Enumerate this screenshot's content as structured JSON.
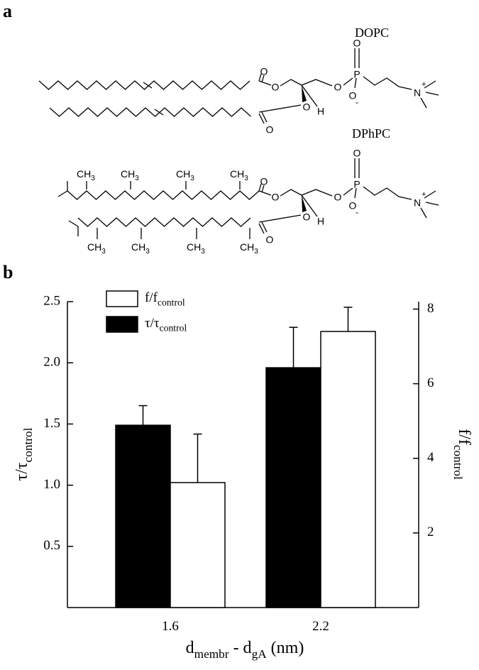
{
  "panel_a": {
    "label": "a",
    "molecules": [
      {
        "name": "DOPC",
        "atoms": [
          "O",
          "O",
          "O",
          "O",
          "H",
          "O",
          "P",
          "O",
          "O",
          "N"
        ],
        "charges": [
          "-",
          "+"
        ]
      },
      {
        "name": "DPhPC",
        "atoms": [
          "O",
          "O",
          "O",
          "O",
          "H",
          "O",
          "P",
          "O",
          "O",
          "N"
        ],
        "charges": [
          "-",
          "+"
        ],
        "methyls": [
          [
            "CH",
            "3"
          ],
          [
            "CH",
            "3"
          ],
          [
            "CH",
            "3"
          ],
          [
            "CH",
            "3"
          ],
          [
            "CH",
            "3"
          ],
          [
            "CH",
            "3"
          ],
          [
            "CH",
            "3"
          ],
          [
            "CH",
            "3"
          ]
        ]
      }
    ]
  },
  "chart_data": {
    "type": "bar",
    "panel_label": "b",
    "categories": [
      "1.6",
      "2.2"
    ],
    "x_label": [
      "d",
      "membr",
      " - d",
      "gA",
      " (nm)"
    ],
    "y_label": [
      "τ/τ",
      "control"
    ],
    "y2_label": [
      "f/f",
      "control"
    ],
    "ylim": [
      0,
      2.5
    ],
    "yticks": [
      0.5,
      {
        "value": 1.0,
        "label": "1.0"
      },
      1.5,
      {
        "value": 2.0,
        "label": "2.0"
      },
      2.5
    ],
    "y2lim": [
      0,
      8.2
    ],
    "y2ticks": [
      2,
      4,
      6,
      8
    ],
    "legend": "upper left",
    "series": [
      {
        "name": [
          "τ/τ",
          "control"
        ],
        "color": "#000000",
        "values": [
          1.49,
          1.96
        ],
        "errors": [
          0.16,
          0.33
        ]
      },
      {
        "name": [
          "f/f",
          "control"
        ],
        "color": "#ffffff",
        "axis": "y2",
        "values": [
          3.35,
          7.4
        ],
        "errors": [
          1.3,
          0.65
        ]
      }
    ]
  }
}
